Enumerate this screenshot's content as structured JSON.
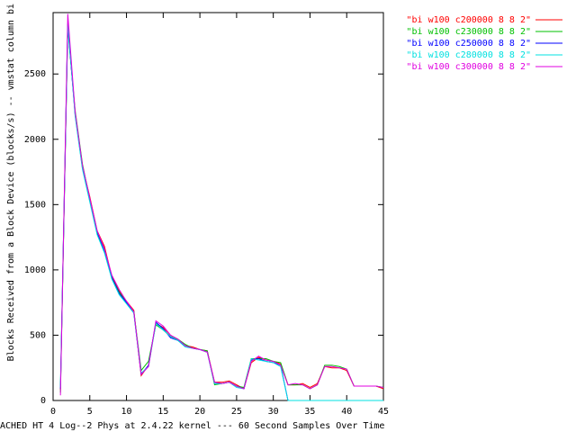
{
  "chart_data": {
    "type": "line",
    "xlabel": "ACHED HT 4 Log--2 Phys at 2.4.22 kernel --- 60 Second Samples Over Time",
    "ylabel": "Blocks Received from a Block Device (blocks/s) -- vmstat column bi",
    "x": [
      1,
      2,
      3,
      4,
      5,
      6,
      7,
      8,
      9,
      10,
      11,
      12,
      13,
      14,
      15,
      16,
      17,
      18,
      19,
      20,
      21,
      22,
      23,
      24,
      25,
      26,
      27,
      28,
      29,
      30,
      31,
      32,
      33,
      34,
      35,
      36,
      37,
      38,
      39,
      40,
      41,
      42,
      43,
      44,
      45
    ],
    "series": [
      {
        "name": "\"bi w100 c200000 8 8 2\"",
        "color": "#ff0000",
        "values": [
          80,
          2880,
          2200,
          1790,
          1560,
          1300,
          1180,
          950,
          840,
          760,
          690,
          190,
          270,
          590,
          560,
          500,
          460,
          420,
          410,
          390,
          380,
          140,
          140,
          150,
          120,
          90,
          290,
          330,
          310,
          300,
          280,
          120,
          120,
          130,
          100,
          130,
          260,
          250,
          250,
          230,
          110,
          110,
          110,
          110,
          90
        ]
      },
      {
        "name": "\"bi w100 c230000 8 8 2\"",
        "color": "#00c000",
        "values": [
          60,
          2850,
          2220,
          1810,
          1540,
          1290,
          1160,
          940,
          830,
          750,
          680,
          230,
          300,
          580,
          540,
          490,
          470,
          430,
          400,
          390,
          380,
          120,
          130,
          140,
          110,
          100,
          320,
          320,
          320,
          300,
          290,
          120,
          120,
          120,
          90,
          120,
          270,
          270,
          260,
          240,
          110,
          110,
          110,
          110,
          100
        ]
      },
      {
        "name": "\"bi w100 c250000 8 8 2\"",
        "color": "#0000ff",
        "values": [
          90,
          2870,
          2190,
          1780,
          1530,
          1280,
          1140,
          940,
          820,
          750,
          670,
          200,
          270,
          600,
          550,
          480,
          460,
          420,
          400,
          390,
          370,
          130,
          130,
          140,
          110,
          90,
          310,
          320,
          300,
          290,
          270,
          0,
          0,
          0,
          0,
          0,
          0,
          0,
          0,
          0,
          0,
          0,
          0,
          0,
          0
        ]
      },
      {
        "name": "\"bi w100 c280000 8 8 2\"",
        "color": "#00e0e0",
        "values": [
          100,
          2890,
          2180,
          1770,
          1520,
          1270,
          1130,
          930,
          810,
          740,
          670,
          210,
          260,
          590,
          540,
          490,
          460,
          410,
          400,
          390,
          370,
          130,
          130,
          140,
          100,
          90,
          320,
          310,
          300,
          290,
          260,
          0,
          0,
          0,
          0,
          0,
          0,
          0,
          0,
          0,
          0,
          0,
          0,
          0,
          0
        ]
      },
      {
        "name": "\"bi w100 c300000 8 8 2\"",
        "color": "#e000e0",
        "values": [
          40,
          2960,
          2210,
          1800,
          1550,
          1300,
          1160,
          960,
          850,
          760,
          680,
          200,
          260,
          610,
          570,
          500,
          470,
          420,
          400,
          390,
          370,
          140,
          130,
          140,
          110,
          90,
          300,
          340,
          310,
          300,
          270,
          120,
          130,
          120,
          90,
          120,
          260,
          260,
          250,
          240,
          110,
          110,
          110,
          110,
          100
        ]
      }
    ],
    "xlim": [
      0,
      45
    ],
    "xticks": [
      0,
      5,
      10,
      15,
      20,
      25,
      30,
      35,
      40,
      45
    ],
    "ylim": [
      0,
      2970
    ],
    "yticks": [
      0,
      500,
      1000,
      1500,
      2000,
      2500
    ],
    "legend": "top-right"
  }
}
